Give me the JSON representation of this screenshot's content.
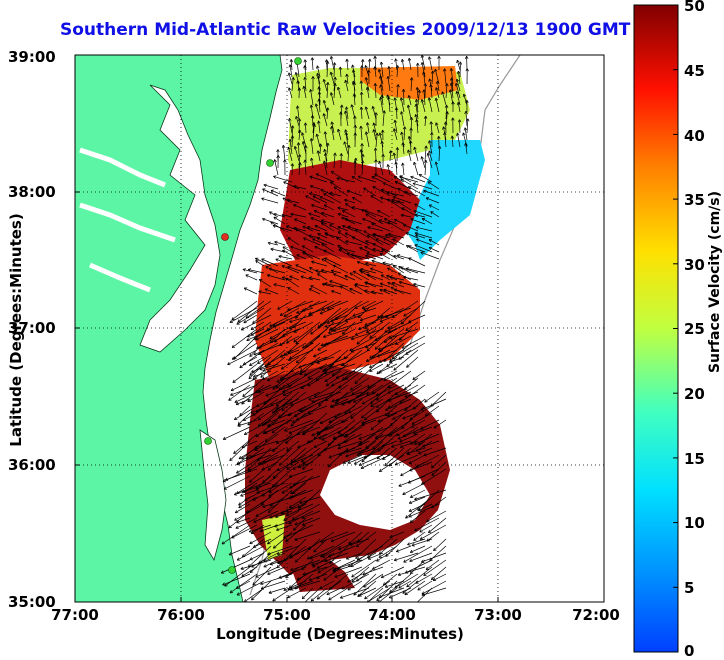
{
  "title": "Southern Mid-Atlantic Raw Velocities 2009/12/13 1900 GMT",
  "map": {
    "xlabel": "Longitude (Degrees:Minutes)",
    "ylabel": "Latitude (Degrees:Minutes)",
    "x_ticks": [
      "77:00",
      "76:00",
      "75:00",
      "74:00",
      "73:00",
      "72:00"
    ],
    "y_ticks": [
      "39:00",
      "38:00",
      "37:00",
      "36:00",
      "35:00"
    ],
    "lon_range": [
      -77,
      -72
    ],
    "lat_range": [
      35,
      39
    ],
    "grid": "dotted",
    "land_color": "#5cf5a5",
    "station_color_active": "#34d134",
    "station_color_alert": "#e03020"
  },
  "colorbar": {
    "label": "Surface Velocity (cm/s)",
    "ticks": [
      "50",
      "45",
      "40",
      "35",
      "30",
      "25",
      "20",
      "15",
      "10",
      "5",
      "0"
    ],
    "range": [
      0,
      50
    ],
    "colormap": "jet"
  }
}
